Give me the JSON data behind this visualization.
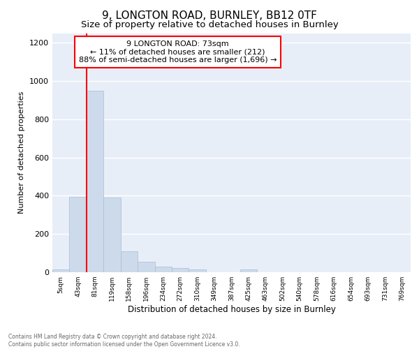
{
  "title1": "9, LONGTON ROAD, BURNLEY, BB12 0TF",
  "title2": "Size of property relative to detached houses in Burnley",
  "xlabel": "Distribution of detached houses by size in Burnley",
  "ylabel": "Number of detached properties",
  "categories": [
    "5sqm",
    "43sqm",
    "81sqm",
    "119sqm",
    "158sqm",
    "196sqm",
    "234sqm",
    "272sqm",
    "310sqm",
    "349sqm",
    "387sqm",
    "425sqm",
    "463sqm",
    "502sqm",
    "540sqm",
    "578sqm",
    "616sqm",
    "654sqm",
    "693sqm",
    "731sqm",
    "769sqm"
  ],
  "values": [
    15,
    395,
    950,
    390,
    110,
    55,
    28,
    22,
    13,
    0,
    0,
    13,
    0,
    0,
    0,
    0,
    0,
    0,
    0,
    0,
    0
  ],
  "bar_color": "#ccdaeb",
  "bar_edge_color": "#aabdd4",
  "red_line_x": 1.5,
  "annotation_text": "9 LONGTON ROAD: 73sqm\n← 11% of detached houses are smaller (212)\n88% of semi-detached houses are larger (1,696) →",
  "annotation_box_color": "white",
  "annotation_box_edge": "red",
  "footnote": "Contains HM Land Registry data © Crown copyright and database right 2024.\nContains public sector information licensed under the Open Government Licence v3.0.",
  "ylim": [
    0,
    1250
  ],
  "yticks": [
    0,
    200,
    400,
    600,
    800,
    1000,
    1200
  ],
  "background_color": "#e8eef8",
  "grid_color": "white",
  "title1_fontsize": 11,
  "title2_fontsize": 9.5
}
